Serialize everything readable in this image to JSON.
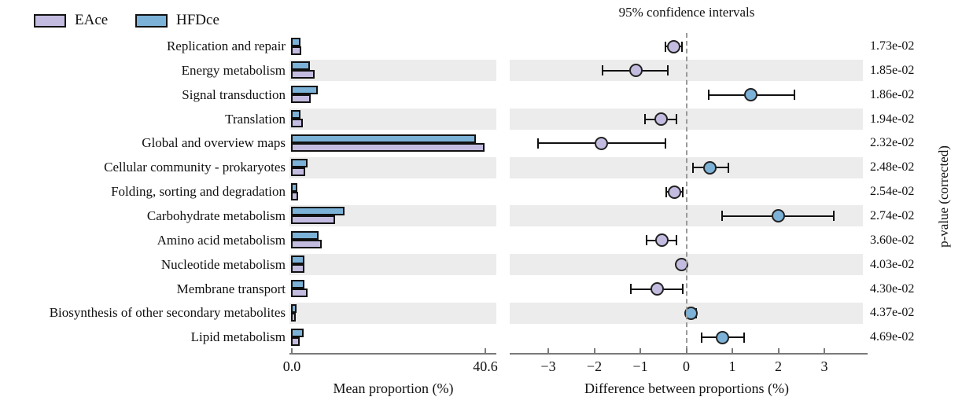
{
  "figure": {
    "right_panel_title": "95% confidence intervals",
    "left_axis_title": "Mean proportion (%)",
    "right_axis_title": "Difference between proportions (%)",
    "right_y_title": "p-value (corrected)"
  },
  "legend": {
    "series": [
      {
        "label": "EAce",
        "color": "#C4BCE0"
      },
      {
        "label": "HFDce",
        "color": "#7CB2D7"
      }
    ]
  },
  "chart_data": {
    "type": "bar",
    "subtype": "extended-error-bar (STAMP-style dual panel)",
    "title": "95% confidence intervals",
    "xlabel_left": "Mean proportion (%)",
    "xlabel_right": "Difference between proportions (%)",
    "ylabel_right": "p-value (corrected)",
    "left_axis": {
      "ticks": [
        "0.0",
        "40.6"
      ],
      "xlim": [
        0,
        40.6
      ]
    },
    "right_axis": {
      "ticks": [
        "-3",
        "-2",
        "-1",
        "0",
        "1",
        "2",
        "3"
      ],
      "xlim": [
        -3.85,
        3.9
      ],
      "zero_line": "dashed"
    },
    "grid": false,
    "legend_position": "top-left",
    "categories": [
      "Replication and repair",
      "Energy metabolism",
      "Signal transduction",
      "Translation",
      "Global and overview maps",
      "Cellular community - prokaryotes",
      "Folding, sorting and degradation",
      "Carbohydrate metabolism",
      "Amino acid metabolism",
      "Nucleotide metabolism",
      "Membrane transport",
      "Biosynthesis of other secondary metabolites",
      "Lipid metabolism"
    ],
    "series": [
      {
        "name": "EAce",
        "color": "#C4BCE0",
        "values": [
          2.2,
          5.0,
          4.2,
          2.5,
          40.6,
          2.9,
          1.5,
          9.2,
          6.4,
          2.85,
          3.5,
          1.0,
          1.8
        ]
      },
      {
        "name": "HFDce",
        "color": "#7CB2D7",
        "values": [
          1.9,
          3.9,
          5.6,
          2.0,
          38.8,
          3.4,
          1.25,
          11.2,
          5.85,
          2.75,
          2.87,
          1.1,
          2.6
        ]
      }
    ],
    "difference_between_proportions": [
      {
        "mean": -0.27,
        "ci": [
          -0.45,
          -0.1
        ],
        "dominant": "EAce"
      },
      {
        "mean": -1.1,
        "ci": [
          -1.82,
          -0.4
        ],
        "dominant": "EAce"
      },
      {
        "mean": 1.4,
        "ci": [
          0.48,
          2.35
        ],
        "dominant": "HFDce"
      },
      {
        "mean": -0.55,
        "ci": [
          -0.9,
          -0.22
        ],
        "dominant": "EAce"
      },
      {
        "mean": -1.85,
        "ci": [
          -3.22,
          -0.46
        ],
        "dominant": "EAce"
      },
      {
        "mean": 0.52,
        "ci": [
          0.14,
          0.91
        ],
        "dominant": "HFDce"
      },
      {
        "mean": -0.26,
        "ci": [
          -0.44,
          -0.08
        ],
        "dominant": "EAce"
      },
      {
        "mean": 2.0,
        "ci": [
          0.78,
          3.2
        ],
        "dominant": "HFDce"
      },
      {
        "mean": -0.53,
        "ci": [
          -0.86,
          -0.21
        ],
        "dominant": "EAce"
      },
      {
        "mean": -0.1,
        "ci": [
          -0.16,
          -0.04
        ],
        "dominant": "EAce"
      },
      {
        "mean": -0.63,
        "ci": [
          -1.2,
          -0.07
        ],
        "dominant": "EAce"
      },
      {
        "mean": 0.1,
        "ci": [
          0.02,
          0.21
        ],
        "dominant": "HFDce"
      },
      {
        "mean": 0.78,
        "ci": [
          0.33,
          1.25
        ],
        "dominant": "HFDce"
      }
    ],
    "p_values": [
      "1.73e-02",
      "1.85e-02",
      "1.86e-02",
      "1.94e-02",
      "2.32e-02",
      "2.48e-02",
      "2.54e-02",
      "2.74e-02",
      "3.60e-02",
      "4.03e-02",
      "4.30e-02",
      "4.37e-02",
      "4.69e-02"
    ]
  }
}
